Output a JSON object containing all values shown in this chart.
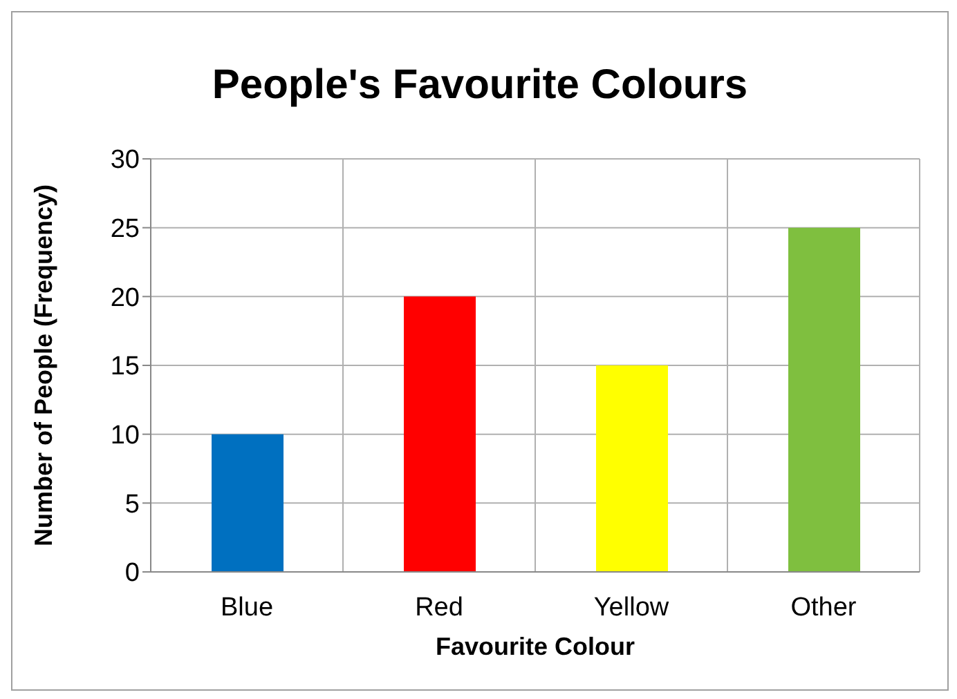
{
  "chart_data": {
    "type": "bar",
    "title": "People's Favourite Colours",
    "xlabel": "Favourite Colour",
    "ylabel": "Number of People (Frequency)",
    "categories": [
      "Blue",
      "Red",
      "Yellow",
      "Other"
    ],
    "values": [
      10,
      20,
      15,
      25
    ],
    "colors": [
      "#0070c0",
      "#ff0000",
      "#ffff00",
      "#7fbf3f"
    ],
    "ylim": [
      0,
      30
    ],
    "yticks": [
      0,
      5,
      10,
      15,
      20,
      25,
      30
    ],
    "grid": true
  }
}
